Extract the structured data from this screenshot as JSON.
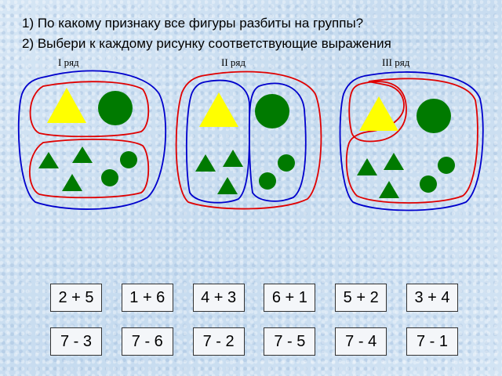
{
  "questions": [
    "1) По какому признаку все фигуры разбиты на группы?",
    "2) Выбери к каждому рисунку соответствующие выражения"
  ],
  "rows": [
    {
      "label": "I ряд"
    },
    {
      "label": "II ряд"
    },
    {
      "label": "III ряд"
    }
  ],
  "colors": {
    "yellow": "#ffff00",
    "green": "#007a00",
    "outer_line": "#0000cc",
    "inner_line": "#e00000"
  },
  "expressions_sum": [
    "2 + 5",
    "1 + 6",
    "4 + 3",
    "6 + 1",
    "5 + 2",
    "3 + 4"
  ],
  "expressions_diff": [
    "7 - 3",
    "7 - 6",
    "7 - 2",
    "7 - 5",
    "7 - 4",
    "7 - 1"
  ]
}
